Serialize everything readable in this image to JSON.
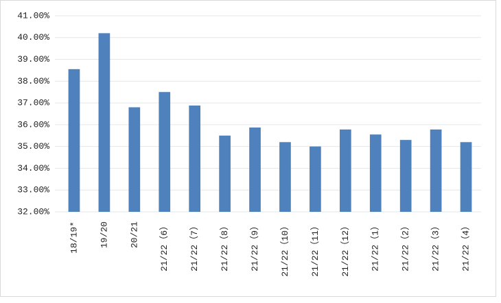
{
  "chart_data": {
    "type": "bar",
    "categories": [
      "18/19*",
      "19/20",
      "20/21",
      "21/22（6）",
      "21/22（7）",
      "21/22（8）",
      "21/22（9）",
      "21/22（10）",
      "21/22（11）",
      "21/22（12）",
      "21/22（1）",
      "21/22（2）",
      "21/22（3）",
      "21/22（4）"
    ],
    "values": [
      38.55,
      40.2,
      36.8,
      37.5,
      36.88,
      35.5,
      35.87,
      35.2,
      35.0,
      35.78,
      35.55,
      35.3,
      35.78,
      35.2
    ],
    "color": "#4f81bd",
    "ylim": [
      32,
      41
    ],
    "yticks": [
      {
        "value": 32,
        "label": "32.00%"
      },
      {
        "value": 33,
        "label": "33.00%"
      },
      {
        "value": 34,
        "label": "34.00%"
      },
      {
        "value": 35,
        "label": "35.00%"
      },
      {
        "value": 36,
        "label": "36.00%"
      },
      {
        "value": 37,
        "label": "37.00%"
      },
      {
        "value": 38,
        "label": "38.00%"
      },
      {
        "value": 39,
        "label": "39.00%"
      },
      {
        "value": 40,
        "label": "40.00%"
      },
      {
        "value": 41,
        "label": "41.00%"
      }
    ],
    "grid": true
  }
}
